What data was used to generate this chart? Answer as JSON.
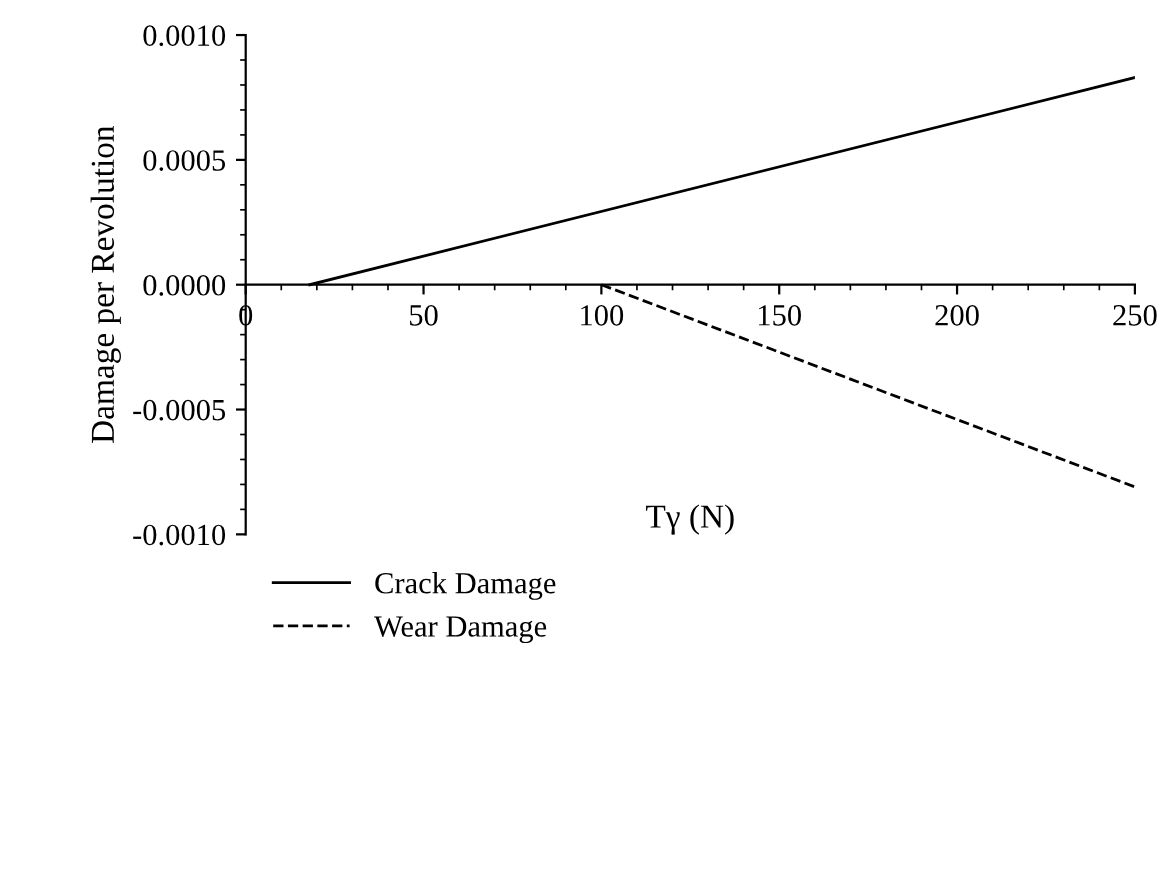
{
  "chart_data": {
    "type": "line",
    "xlabel": "Tγ (N)",
    "ylabel": "Damage per Revolution",
    "series": [
      {
        "name": "Crack Damage",
        "color": "#000000",
        "line_style": "solid",
        "x": [
          18,
          250
        ],
        "values": [
          0,
          0.00083
        ]
      },
      {
        "name": "Wear Damage",
        "color": "#000000",
        "line_style": "dashed",
        "x": [
          100,
          250
        ],
        "values": [
          0,
          -0.00081
        ]
      }
    ],
    "xlim": [
      0,
      250
    ],
    "xticks": [
      0,
      50,
      100,
      150,
      200,
      250
    ],
    "ylim": [
      -0.001,
      0.001
    ],
    "yticks": [
      {
        "value": -0.001,
        "label": "-0.0010"
      },
      {
        "value": -0.0005,
        "label": "-0.0005"
      },
      {
        "value": 0,
        "label": "0.0000"
      },
      {
        "value": 0.0005,
        "label": "0.0005"
      },
      {
        "value": 0.001,
        "label": "0.0010"
      }
    ],
    "grid": false,
    "legend": "bottom",
    "marker": "none"
  }
}
